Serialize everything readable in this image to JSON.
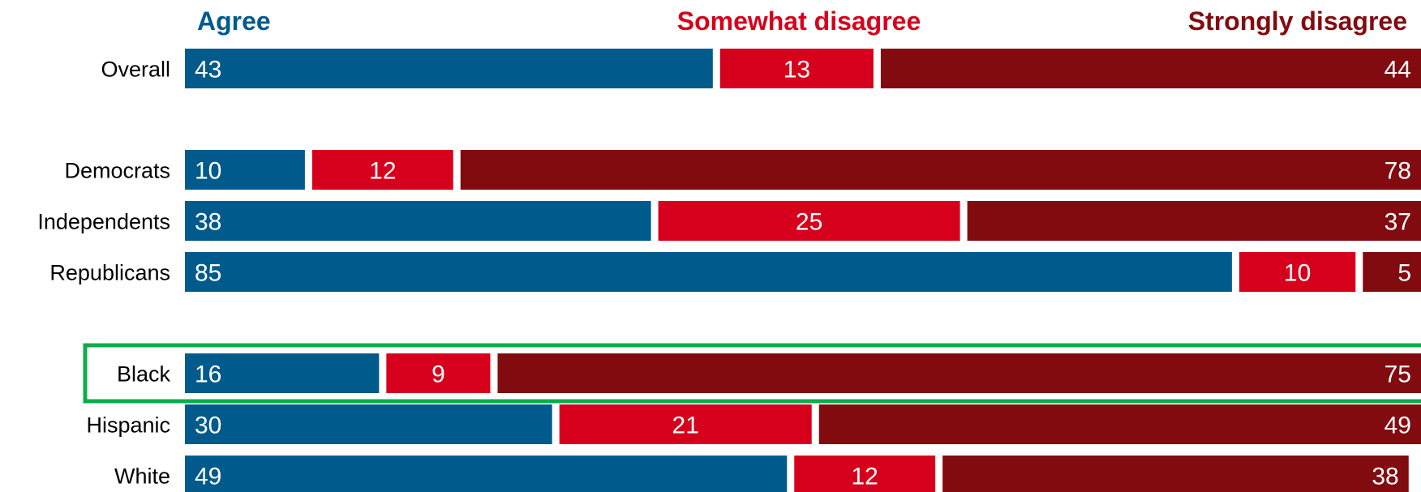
{
  "chart_data": {
    "type": "bar",
    "orientation": "horizontal",
    "stacked": true,
    "categories": [
      "Overall",
      "Democrats",
      "Independents",
      "Republicans",
      "Black",
      "Hispanic",
      "White"
    ],
    "series": [
      {
        "name": "Agree",
        "color": "#005b8c",
        "values": [
          43,
          10,
          38,
          85,
          16,
          30,
          49
        ]
      },
      {
        "name": "Somewhat disagree",
        "color": "#d7001c",
        "values": [
          13,
          12,
          25,
          10,
          9,
          21,
          12
        ]
      },
      {
        "name": "Strongly disagree",
        "color": "#820b10",
        "values": [
          44,
          78,
          37,
          5,
          75,
          49,
          38
        ]
      }
    ],
    "highlighted_category": "Black",
    "highlight_color": "#0bac4b",
    "xlim": [
      0,
      100
    ],
    "grid": false,
    "legend_position": "top"
  }
}
